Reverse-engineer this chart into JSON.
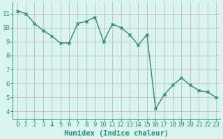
{
  "x": [
    0,
    1,
    2,
    3,
    4,
    5,
    6,
    7,
    8,
    9,
    10,
    11,
    12,
    13,
    14,
    15,
    16,
    17,
    18,
    19,
    20,
    21,
    22,
    23
  ],
  "y": [
    11.2,
    11.0,
    10.3,
    9.8,
    9.4,
    8.9,
    8.9,
    10.3,
    10.45,
    10.75,
    9.0,
    10.25,
    10.0,
    9.5,
    8.75,
    9.5,
    4.2,
    5.2,
    5.9,
    6.4,
    5.9,
    5.5,
    5.4,
    5.0
  ],
  "line_color": "#2e8b7a",
  "marker": "x",
  "marker_size": 3.5,
  "marker_linewidth": 1.0,
  "bg_color": "#d8f5f0",
  "grid_color": "#c8b8b8",
  "xlabel": "Humidex (Indice chaleur)",
  "ylim": [
    3.5,
    11.8
  ],
  "xlim": [
    -0.5,
    23.5
  ],
  "yticks": [
    4,
    5,
    6,
    7,
    8,
    9,
    10,
    11
  ],
  "xticks": [
    0,
    1,
    2,
    3,
    4,
    5,
    6,
    7,
    8,
    9,
    10,
    11,
    12,
    13,
    14,
    15,
    16,
    17,
    18,
    19,
    20,
    21,
    22,
    23
  ],
  "tick_color": "#2e8b7a",
  "font_color": "#2e8b7a",
  "label_fontsize": 7.5,
  "tick_fontsize": 6.5,
  "linewidth": 1.0
}
